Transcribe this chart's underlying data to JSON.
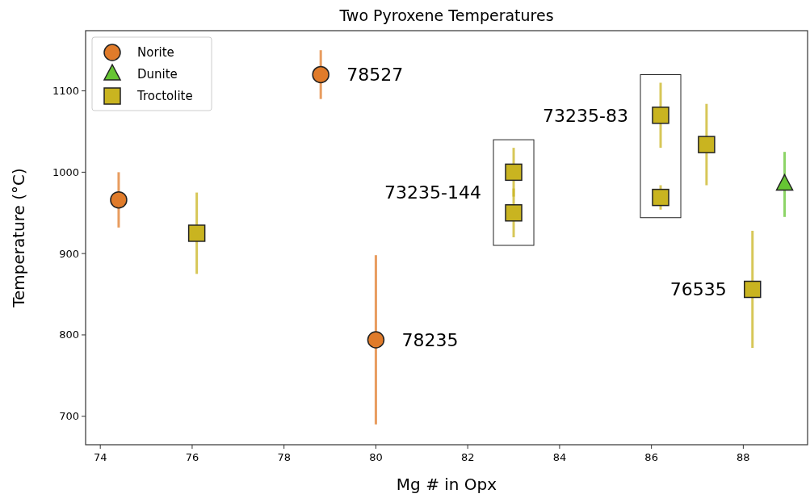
{
  "chart_data": {
    "type": "scatter",
    "title": "Two Pyroxene Temperatures",
    "xlabel": "Mg # in Opx",
    "ylabel": "Temperature (°C)",
    "xlim": [
      73.68,
      89.4
    ],
    "xticks": [
      74,
      76,
      78,
      80,
      82,
      84,
      86,
      88
    ],
    "ylim": [
      665,
      1174
    ],
    "yticks": [
      700,
      800,
      900,
      1000,
      1100
    ],
    "legend": "top left",
    "grid": false,
    "series": [
      {
        "name": "Norite",
        "color": "#e07b2a",
        "marker": "circle",
        "x": [
          74.4,
          78.8,
          80
        ],
        "values": [
          966,
          1120,
          794
        ],
        "errors": [
          34,
          30,
          104
        ]
      },
      {
        "name": "Dunite",
        "color": "#66c533",
        "marker": "triangle",
        "x": [
          88.9
        ],
        "values": [
          985
        ],
        "errors": [
          40
        ]
      },
      {
        "name": "Troctolite",
        "color": "#c9b420",
        "marker": "square",
        "x": [
          76.1,
          83,
          83,
          86.2,
          86.2,
          87.2,
          88.2
        ],
        "values": [
          925,
          1000,
          950,
          1070,
          969,
          1034,
          856
        ],
        "errors": [
          50,
          30,
          30,
          40,
          15,
          50,
          72
        ]
      }
    ],
    "annotations": [
      {
        "text": "78527",
        "x": 78.8,
        "y": 1120
      },
      {
        "text": "78235",
        "x": 80,
        "y": 794
      },
      {
        "text": "73235-144",
        "x": 83,
        "y": 975
      },
      {
        "text": "73235-83",
        "x": 86.2,
        "y": 1070
      },
      {
        "text": "76535",
        "x": 88.2,
        "y": 856
      }
    ]
  }
}
